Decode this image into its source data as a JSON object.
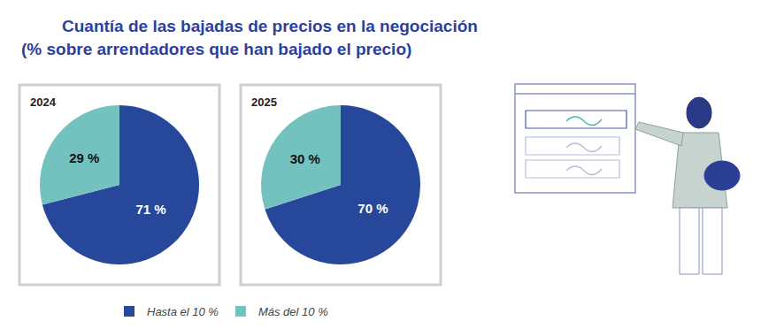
{
  "title": "Cuantía de las bajadas de precios en la negociación",
  "subtitle": "(% sobre arrendadores que han bajado el precio)",
  "chart_data": [
    {
      "type": "pie",
      "title": "2024",
      "categories": [
        "Hasta el 10 %",
        "Más del 10 %"
      ],
      "values": [
        71,
        29
      ],
      "value_labels": [
        "71 %",
        "29 %"
      ],
      "colors": [
        "#27489a",
        "#74c2c0"
      ],
      "data_labels": true,
      "legend": "bottom"
    },
    {
      "type": "pie",
      "title": "2025",
      "categories": [
        "Hasta el 10 %",
        "Más del 10 %"
      ],
      "values": [
        70,
        30
      ],
      "value_labels": [
        "70 %",
        "30 %"
      ],
      "colors": [
        "#27489a",
        "#74c2c0"
      ],
      "data_labels": true,
      "legend": "bottom"
    }
  ]
}
